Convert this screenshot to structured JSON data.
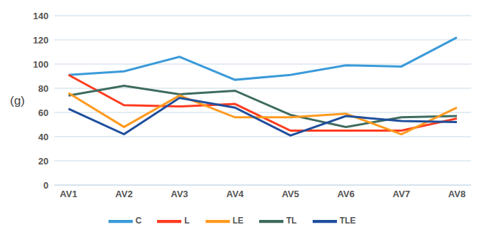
{
  "chart_data": {
    "type": "line",
    "y_label": "(g)",
    "categories": [
      "AV1",
      "AV2",
      "AV3",
      "AV4",
      "AV5",
      "AV6",
      "AV7",
      "AV8"
    ],
    "series": [
      {
        "name": "C",
        "color": "#3a9ad9",
        "values": [
          91,
          94,
          106,
          87,
          91,
          99,
          98,
          122
        ]
      },
      {
        "name": "L",
        "color": "#ff3b1f",
        "values": [
          91,
          66,
          65,
          67,
          45,
          45,
          45,
          55
        ]
      },
      {
        "name": "TL",
        "color": "#3d6b5e",
        "values": [
          74,
          82,
          75,
          78,
          58,
          48,
          56,
          57
        ]
      },
      {
        "name": "LE",
        "color": "#ff9a1f",
        "values": [
          76,
          48,
          74,
          56,
          56,
          59,
          42,
          64
        ]
      },
      {
        "name": "TLE",
        "color": "#1f4e9c",
        "values": [
          63,
          42,
          72,
          64,
          41,
          57,
          53,
          52
        ]
      }
    ],
    "ylim": [
      0,
      140
    ],
    "yticks": [
      0,
      20,
      40,
      60,
      80,
      100,
      120,
      140
    ],
    "grid": true,
    "legend": "bottom",
    "marker": "none"
  }
}
